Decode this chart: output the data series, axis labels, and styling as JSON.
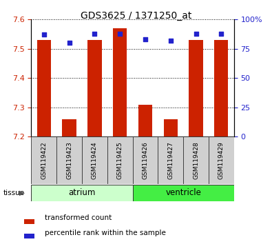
{
  "title": "GDS3625 / 1371250_at",
  "samples": [
    "GSM119422",
    "GSM119423",
    "GSM119424",
    "GSM119425",
    "GSM119426",
    "GSM119427",
    "GSM119428",
    "GSM119429"
  ],
  "transformed_counts": [
    7.53,
    7.26,
    7.53,
    7.57,
    7.31,
    7.26,
    7.53,
    7.53
  ],
  "percentile_ranks": [
    87,
    80,
    88,
    88,
    83,
    82,
    88,
    88
  ],
  "ylim_left": [
    7.2,
    7.6
  ],
  "ylim_right": [
    0,
    100
  ],
  "yticks_left": [
    7.2,
    7.3,
    7.4,
    7.5,
    7.6
  ],
  "yticks_right": [
    0,
    25,
    50,
    75,
    100
  ],
  "ytick_labels_right": [
    "0",
    "25",
    "50",
    "75",
    "100%"
  ],
  "ytick_labels_left": [
    "7.2",
    "7.3",
    "7.4",
    "7.5",
    "7.6"
  ],
  "bar_color": "#cc2200",
  "dot_color": "#2222cc",
  "bar_width": 0.55,
  "baseline": 7.2,
  "tissue_groups": [
    {
      "label": "atrium",
      "start": 0,
      "end": 3,
      "color": "#ccffcc"
    },
    {
      "label": "ventricle",
      "start": 4,
      "end": 7,
      "color": "#44ee44"
    }
  ],
  "tissue_label": "tissue",
  "bg_color": "#ffffff",
  "plot_bg": "#ffffff",
  "tick_label_color_left": "#cc2200",
  "tick_label_color_right": "#2222cc"
}
